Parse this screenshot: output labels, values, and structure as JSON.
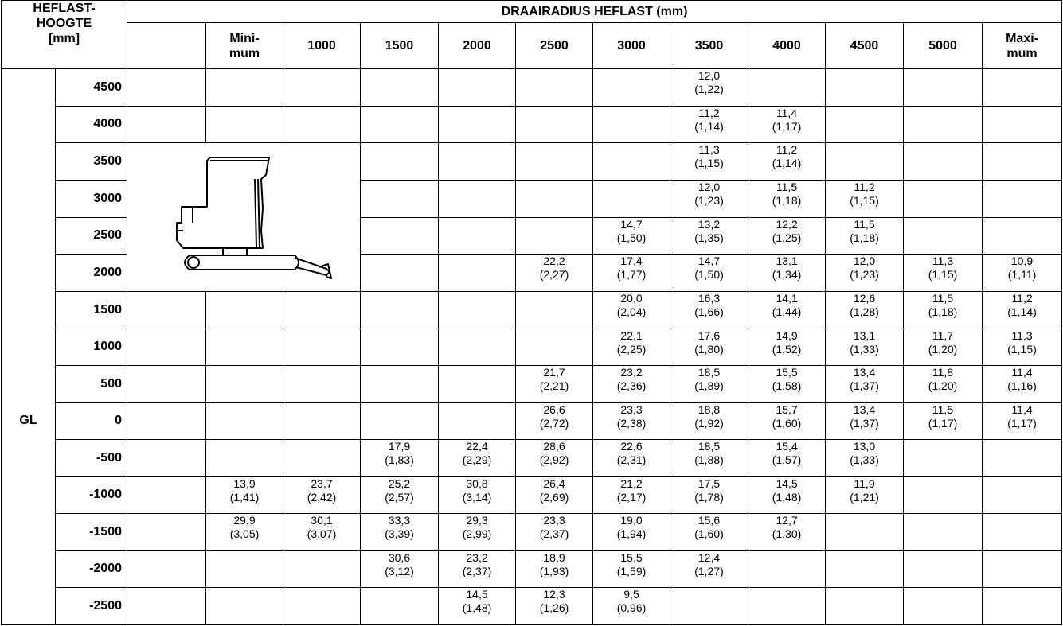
{
  "table": {
    "left_header": "HEFLAST-\nHOOGTE\n[mm]",
    "group_header": "DRAAIRADIUS HEFLAST (mm)",
    "columns": [
      "Mini-\nmum",
      "1000",
      "1500",
      "2000",
      "2500",
      "3000",
      "3500",
      "4000",
      "4500",
      "5000",
      "Maxi-\nmum"
    ],
    "gl_label": "GL",
    "rows": [
      {
        "height": "4500",
        "cells": [
          null,
          null,
          null,
          null,
          null,
          null,
          [
            "12,0",
            "(1,22)"
          ],
          null,
          null,
          null,
          null
        ]
      },
      {
        "height": "4000",
        "cells": [
          null,
          null,
          null,
          null,
          null,
          null,
          [
            "11,2",
            "(1,14)"
          ],
          [
            "11,4",
            "(1,17)"
          ],
          null,
          null,
          null
        ]
      },
      {
        "height": "3500",
        "cells": [
          null,
          null,
          null,
          null,
          null,
          null,
          [
            "11,3",
            "(1,15)"
          ],
          [
            "11,2",
            "(1,14)"
          ],
          null,
          null,
          null
        ]
      },
      {
        "height": "3000",
        "cells": [
          null,
          null,
          null,
          null,
          null,
          null,
          [
            "12,0",
            "(1,23)"
          ],
          [
            "11,5",
            "(1,18)"
          ],
          [
            "11,2",
            "(1,15)"
          ],
          null,
          null
        ]
      },
      {
        "height": "2500",
        "cells": [
          null,
          null,
          null,
          null,
          null,
          [
            "14,7",
            "(1,50)"
          ],
          [
            "13,2",
            "(1,35)"
          ],
          [
            "12,2",
            "(1,25)"
          ],
          [
            "11,5",
            "(1,18)"
          ],
          null,
          null
        ]
      },
      {
        "height": "2000",
        "cells": [
          null,
          null,
          null,
          null,
          [
            "22,2",
            "(2,27)"
          ],
          [
            "17,4",
            "(1,77)"
          ],
          [
            "14,7",
            "(1,50)"
          ],
          [
            "13,1",
            "(1,34)"
          ],
          [
            "12,0",
            "(1,23)"
          ],
          [
            "11,3",
            "(1,15)"
          ],
          [
            "10,9",
            "(1,11)"
          ]
        ]
      },
      {
        "height": "1500",
        "cells": [
          null,
          null,
          null,
          null,
          null,
          [
            "20,0",
            "(2,04)"
          ],
          [
            "16,3",
            "(1,66)"
          ],
          [
            "14,1",
            "(1,44)"
          ],
          [
            "12,6",
            "(1,28)"
          ],
          [
            "11,5",
            "(1,18)"
          ],
          [
            "11,2",
            "(1,14)"
          ]
        ]
      },
      {
        "height": "1000",
        "cells": [
          null,
          null,
          null,
          null,
          null,
          [
            "22,1",
            "(2,25)"
          ],
          [
            "17,6",
            "(1,80)"
          ],
          [
            "14,9",
            "(1,52)"
          ],
          [
            "13,1",
            "(1,33)"
          ],
          [
            "11,7",
            "(1,20)"
          ],
          [
            "11,3",
            "(1,15)"
          ]
        ]
      },
      {
        "height": "500",
        "cells": [
          null,
          null,
          null,
          null,
          [
            "21,7",
            "(2,21)"
          ],
          [
            "23,2",
            "(2,36)"
          ],
          [
            "18,5",
            "(1,89)"
          ],
          [
            "15,5",
            "(1,58)"
          ],
          [
            "13,4",
            "(1,37)"
          ],
          [
            "11,8",
            "(1,20)"
          ],
          [
            "11,4",
            "(1,16)"
          ]
        ]
      },
      {
        "height": "0",
        "cells": [
          null,
          null,
          null,
          null,
          [
            "26,6",
            "(2,72)"
          ],
          [
            "23,3",
            "(2,38)"
          ],
          [
            "18,8",
            "(1,92)"
          ],
          [
            "15,7",
            "(1,60)"
          ],
          [
            "13,4",
            "(1,37)"
          ],
          [
            "11,5",
            "(1,17)"
          ],
          [
            "11,4",
            "(1,17)"
          ]
        ]
      },
      {
        "height": "-500",
        "cells": [
          null,
          null,
          [
            "17,9",
            "(1,83)"
          ],
          [
            "22,4",
            "(2,29)"
          ],
          [
            "28,6",
            "(2,92)"
          ],
          [
            "22,6",
            "(2,31)"
          ],
          [
            "18,5",
            "(1,88)"
          ],
          [
            "15,4",
            "(1,57)"
          ],
          [
            "13,0",
            "(1,33)"
          ],
          null,
          null
        ]
      },
      {
        "height": "-1000",
        "cells": [
          [
            "13,9",
            "(1,41)"
          ],
          [
            "23,7",
            "(2,42)"
          ],
          [
            "25,2",
            "(2,57)"
          ],
          [
            "30,8",
            "(3,14)"
          ],
          [
            "26,4",
            "(2,69)"
          ],
          [
            "21,2",
            "(2,17)"
          ],
          [
            "17,5",
            "(1,78)"
          ],
          [
            "14,5",
            "(1,48)"
          ],
          [
            "11,9",
            "(1,21)"
          ],
          null,
          null
        ]
      },
      {
        "height": "-1500",
        "cells": [
          [
            "29,9",
            "(3,05)"
          ],
          [
            "30,1",
            "(3,07)"
          ],
          [
            "33,3",
            "(3,39)"
          ],
          [
            "29,3",
            "(2,99)"
          ],
          [
            "23,3",
            "(2,37)"
          ],
          [
            "19,0",
            "(1,94)"
          ],
          [
            "15,6",
            "(1,60)"
          ],
          [
            "12,7",
            "(1,30)"
          ],
          null,
          null,
          null
        ]
      },
      {
        "height": "-2000",
        "cells": [
          null,
          null,
          [
            "30,6",
            "(3,12)"
          ],
          [
            "23,2",
            "(2,37)"
          ],
          [
            "18,9",
            "(1,93)"
          ],
          [
            "15,5",
            "(1,59)"
          ],
          [
            "12,4",
            "(1,27)"
          ],
          null,
          null,
          null,
          null
        ]
      },
      {
        "height": "-2500",
        "cells": [
          null,
          null,
          null,
          [
            "14,5",
            "(1,48)"
          ],
          [
            "12,3",
            "(1,26)"
          ],
          [
            "9,5",
            "(0,96)"
          ],
          null,
          null,
          null,
          null,
          null
        ]
      }
    ]
  }
}
